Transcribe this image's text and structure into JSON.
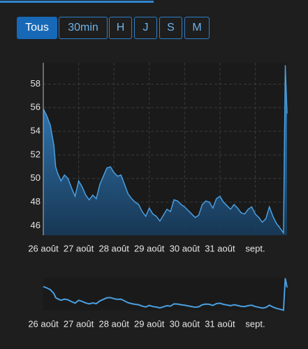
{
  "buttons": [
    "Tous",
    "30min",
    "H",
    "J",
    "S",
    "M"
  ],
  "chart_data": {
    "type": "area",
    "color": "#4a9fe0",
    "grid": true,
    "x": [
      0,
      0.1,
      0.2,
      0.3,
      0.35,
      0.4,
      0.5,
      0.6,
      0.7,
      0.8,
      0.9,
      1.0,
      1.1,
      1.2,
      1.3,
      1.4,
      1.5,
      1.6,
      1.7,
      1.8,
      1.9,
      2.0,
      2.1,
      2.2,
      2.3,
      2.4,
      2.5,
      2.6,
      2.7,
      2.8,
      2.9,
      3.0,
      3.1,
      3.2,
      3.3,
      3.4,
      3.5,
      3.6,
      3.7,
      3.8,
      3.9,
      4.0,
      4.1,
      4.2,
      4.3,
      4.4,
      4.5,
      4.6,
      4.7,
      4.8,
      4.9,
      5.0,
      5.1,
      5.2,
      5.3,
      5.4,
      5.5,
      5.6,
      5.7,
      5.8,
      5.9,
      6.0,
      6.1,
      6.2,
      6.3,
      6.4,
      6.5,
      6.6,
      6.7,
      6.8,
      6.85,
      6.9
    ],
    "values": [
      55.9,
      55.3,
      54.5,
      52.8,
      51,
      50.5,
      49.8,
      50.3,
      50,
      49.2,
      48.5,
      49.8,
      49.3,
      48.6,
      48.2,
      48.6,
      48.3,
      49.5,
      50.2,
      50.9,
      51,
      50.5,
      50.2,
      50.3,
      49.5,
      48.7,
      48.3,
      48,
      47.8,
      47.2,
      46.8,
      47.5,
      47,
      46.8,
      46.4,
      46.9,
      47.4,
      47.2,
      48.2,
      48.1,
      47.8,
      47.6,
      47.3,
      47,
      46.7,
      46.9,
      47.8,
      48.1,
      48,
      47.5,
      48.3,
      48.5,
      48,
      47.7,
      47.4,
      47.8,
      47.5,
      47.1,
      47,
      47.4,
      47.6,
      47,
      46.7,
      46.3,
      46.6,
      47.6,
      46.8,
      46.2,
      45.8,
      45.4,
      59.6,
      55.5
    ],
    "xlim": [
      0,
      6.9
    ],
    "xticks": [
      {
        "value": 0,
        "label": "26 août"
      },
      {
        "value": 1,
        "label": "27 août"
      },
      {
        "value": 2,
        "label": "28 août"
      },
      {
        "value": 3,
        "label": "29 août"
      },
      {
        "value": 4,
        "label": "30 août"
      },
      {
        "value": 5,
        "label": "31 août"
      },
      {
        "value": 6,
        "label": "sept."
      }
    ],
    "ylim": [
      45.2,
      59.8
    ],
    "yticks": [
      46,
      48,
      50,
      52,
      54,
      56,
      58
    ]
  }
}
